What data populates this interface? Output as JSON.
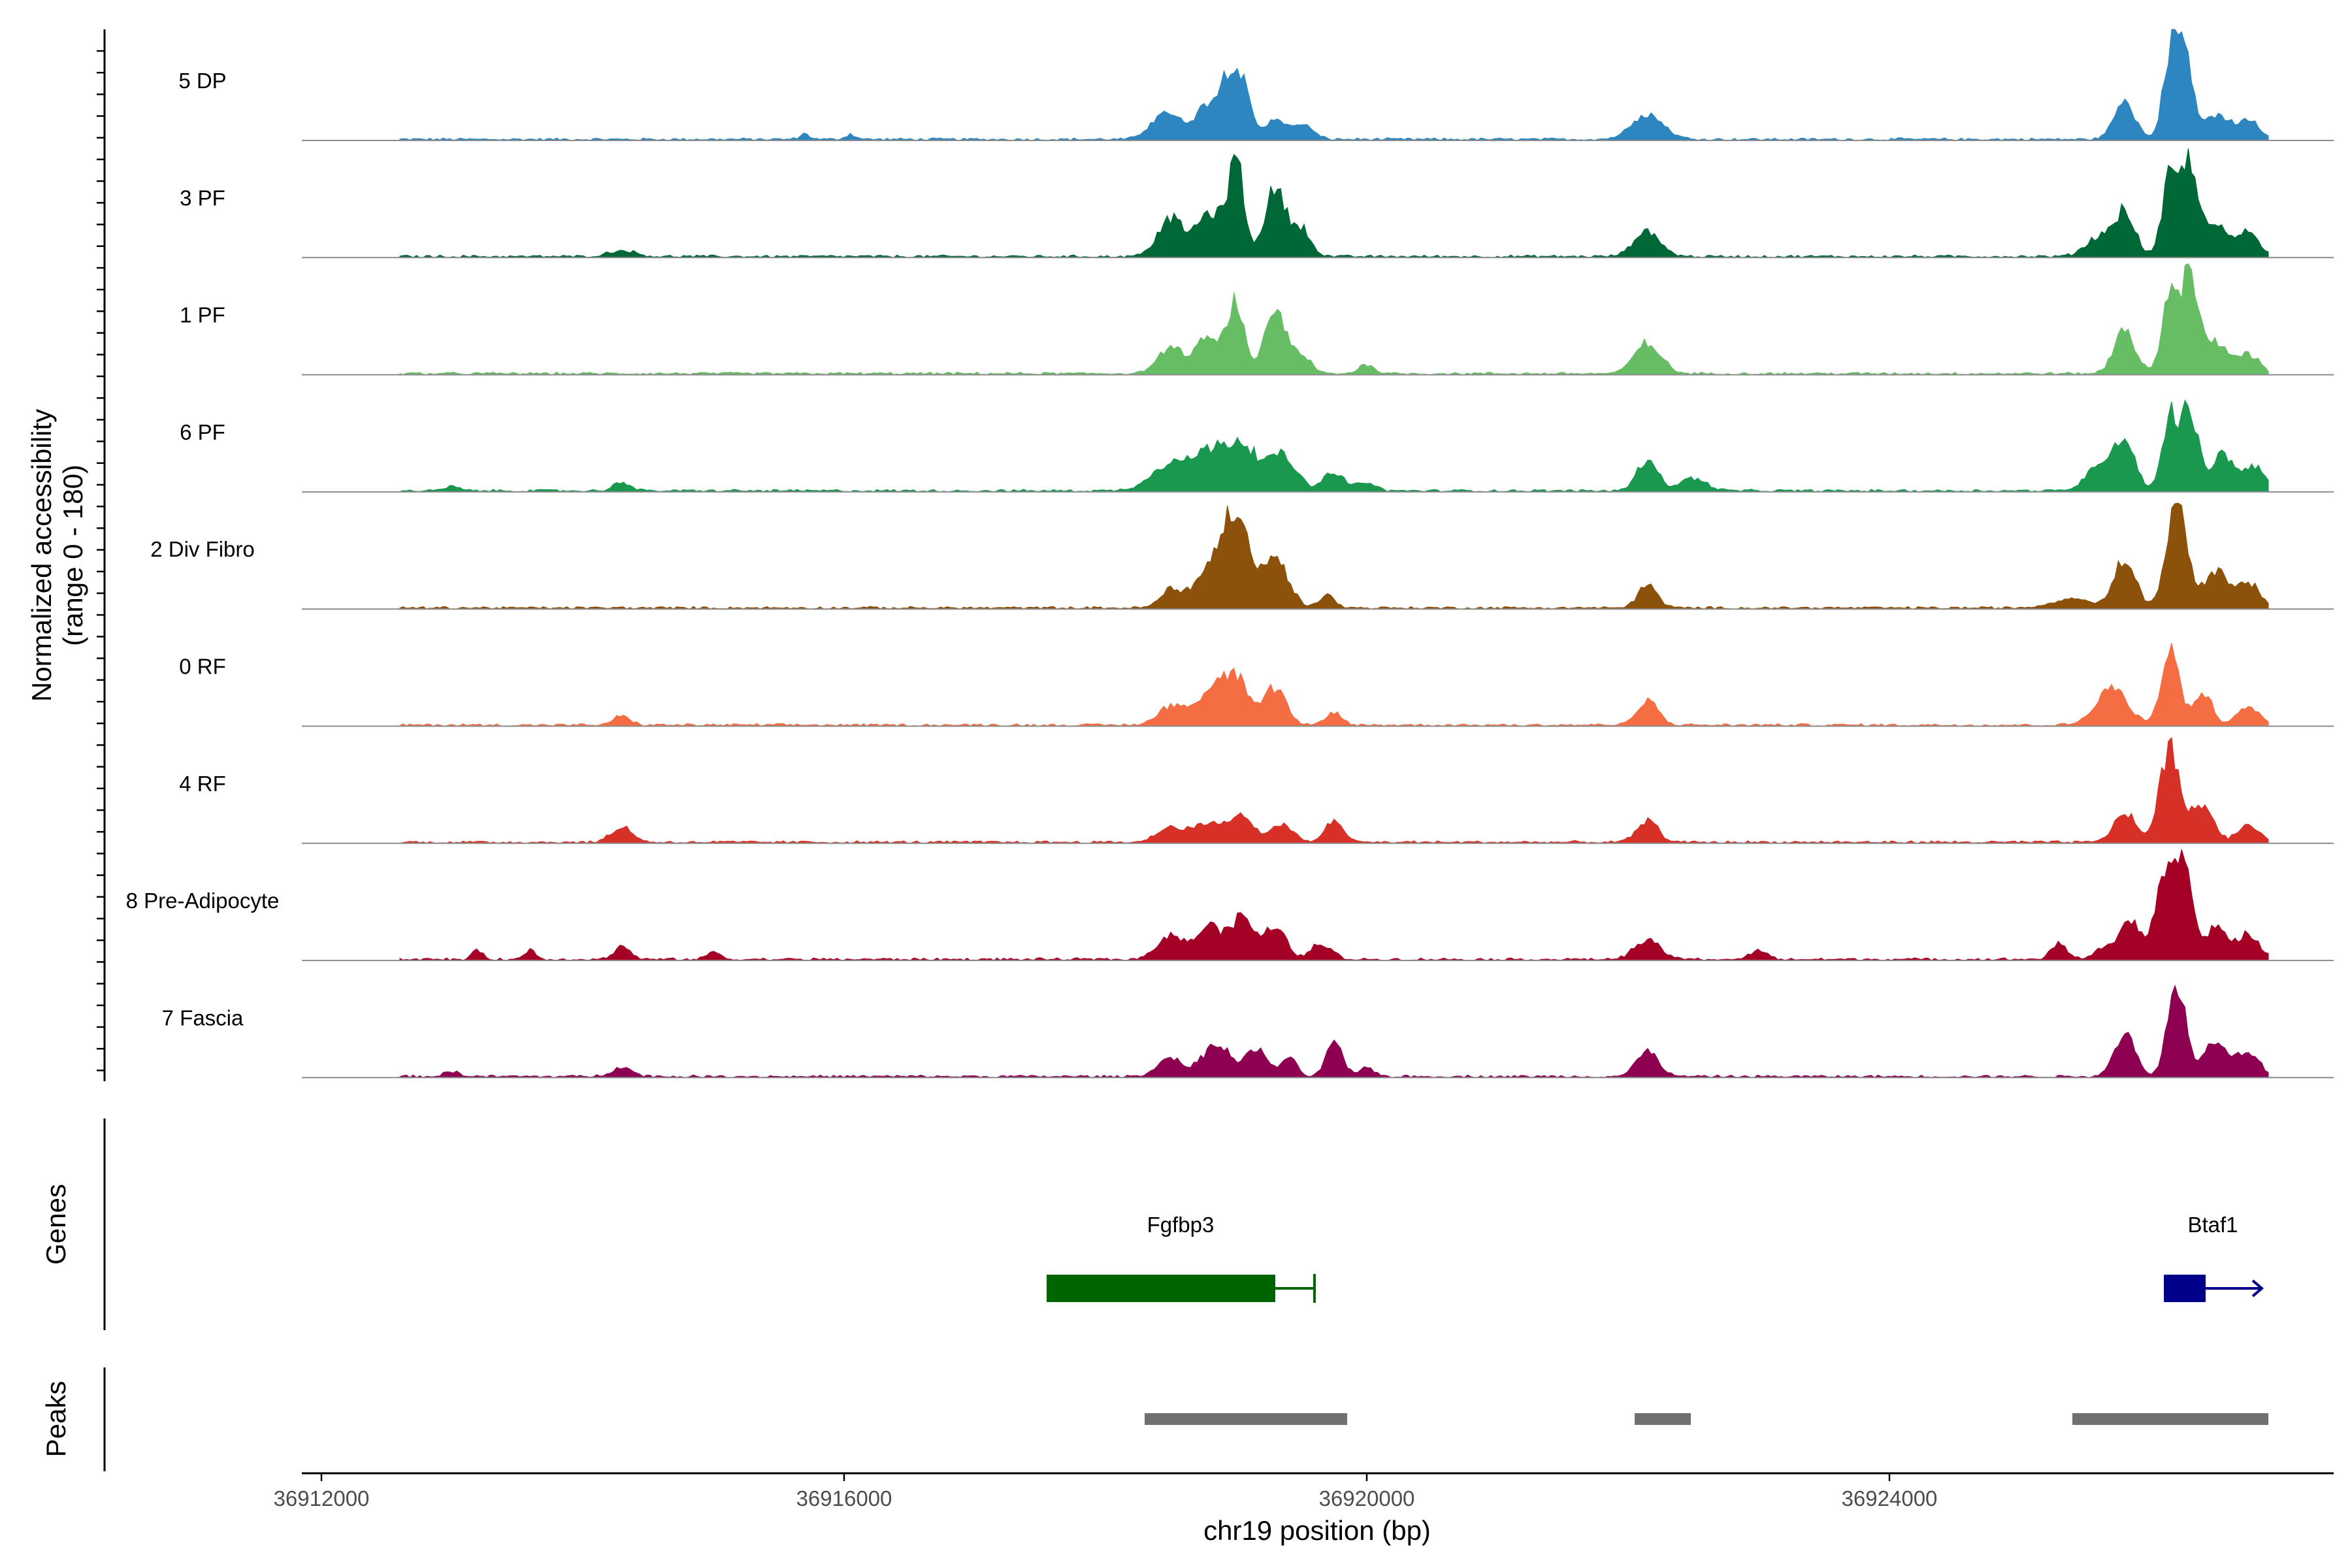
{
  "chart_data": {
    "type": "area",
    "title": "",
    "xlabel": "chr19 position (bp)",
    "ylabel": "Normalized accessibility",
    "ylabel_range": "(range 0 - 180)",
    "ylim": [
      0,
      180
    ],
    "xlim": [
      36911850,
      36927400
    ],
    "data_range": [
      36912600,
      36926900
    ],
    "x_ticks": [
      36912000,
      36916000,
      36920000,
      36924000
    ],
    "x_tick_labels": [
      "36912000",
      "36916000",
      "36920000",
      "36924000"
    ],
    "tracks": [
      {
        "name": "5 DP",
        "color": "#2e86c1",
        "peaks": [
          [
            36915700,
            40,
            8
          ],
          [
            36916050,
            40,
            8
          ],
          [
            36918450,
            100,
            45
          ],
          [
            36918800,
            120,
            55
          ],
          [
            36919000,
            90,
            110
          ],
          [
            36919300,
            60,
            35
          ],
          [
            36919500,
            80,
            25
          ],
          [
            36922150,
            120,
            40
          ],
          [
            36925800,
            80,
            60
          ],
          [
            36926150,
            60,
            120
          ],
          [
            36926250,
            60,
            150
          ],
          [
            36926500,
            100,
            40
          ],
          [
            36926750,
            80,
            30
          ]
        ]
      },
      {
        "name": "3 PF",
        "color": "#006837",
        "peaks": [
          [
            36914300,
            100,
            10
          ],
          [
            36918500,
            100,
            60
          ],
          [
            36918800,
            100,
            70
          ],
          [
            36919000,
            60,
            150
          ],
          [
            36919300,
            80,
            110
          ],
          [
            36919500,
            70,
            45
          ],
          [
            36922150,
            100,
            40
          ],
          [
            36925600,
            100,
            30
          ],
          [
            36925800,
            80,
            70
          ],
          [
            36926150,
            60,
            130
          ],
          [
            36926300,
            60,
            150
          ],
          [
            36926500,
            90,
            50
          ],
          [
            36926750,
            80,
            40
          ]
        ]
      },
      {
        "name": "1 PF",
        "color": "#66bd63",
        "peaks": [
          [
            36918500,
            100,
            40
          ],
          [
            36918800,
            100,
            60
          ],
          [
            36919000,
            60,
            110
          ],
          [
            36919300,
            80,
            100
          ],
          [
            36919500,
            70,
            30
          ],
          [
            36920000,
            60,
            15
          ],
          [
            36922150,
            100,
            50
          ],
          [
            36925800,
            80,
            70
          ],
          [
            36926150,
            60,
            130
          ],
          [
            36926300,
            60,
            160
          ],
          [
            36926500,
            100,
            50
          ],
          [
            36926750,
            80,
            30
          ]
        ]
      },
      {
        "name": "6 PF",
        "color": "#1a9850",
        "peaks": [
          [
            36913000,
            50,
            8
          ],
          [
            36914300,
            60,
            15
          ],
          [
            36918500,
            150,
            40
          ],
          [
            36918800,
            150,
            55
          ],
          [
            36919050,
            120,
            65
          ],
          [
            36919350,
            110,
            55
          ],
          [
            36919750,
            80,
            30
          ],
          [
            36920000,
            60,
            15
          ],
          [
            36922150,
            80,
            50
          ],
          [
            36922500,
            100,
            20
          ],
          [
            36925600,
            100,
            40
          ],
          [
            36925800,
            80,
            80
          ],
          [
            36926150,
            60,
            120
          ],
          [
            36926300,
            60,
            130
          ],
          [
            36926550,
            90,
            60
          ],
          [
            36926800,
            80,
            40
          ]
        ]
      },
      {
        "name": "2 Div Fibro",
        "color": "#8c510a",
        "peaks": [
          [
            36918500,
            80,
            30
          ],
          [
            36918800,
            120,
            60
          ],
          [
            36919000,
            100,
            140
          ],
          [
            36919300,
            100,
            80
          ],
          [
            36919700,
            60,
            20
          ],
          [
            36922150,
            70,
            40
          ],
          [
            36925400,
            150,
            15
          ],
          [
            36925800,
            80,
            80
          ],
          [
            36926200,
            80,
            170
          ],
          [
            36926500,
            90,
            60
          ],
          [
            36926750,
            80,
            40
          ]
        ]
      },
      {
        "name": "0 RF",
        "color": "#f46d43",
        "peaks": [
          [
            36914300,
            60,
            15
          ],
          [
            36918500,
            100,
            30
          ],
          [
            36918800,
            120,
            50
          ],
          [
            36919000,
            100,
            70
          ],
          [
            36919300,
            80,
            60
          ],
          [
            36919750,
            60,
            20
          ],
          [
            36922150,
            80,
            40
          ],
          [
            36925700,
            120,
            60
          ],
          [
            36926150,
            70,
            120
          ],
          [
            36926400,
            70,
            50
          ],
          [
            36926750,
            80,
            30
          ]
        ]
      },
      {
        "name": "4 RF",
        "color": "#d73027",
        "peaks": [
          [
            36914300,
            80,
            25
          ],
          [
            36918500,
            100,
            25
          ],
          [
            36918800,
            120,
            30
          ],
          [
            36919050,
            80,
            45
          ],
          [
            36919350,
            80,
            30
          ],
          [
            36919750,
            70,
            35
          ],
          [
            36922150,
            80,
            35
          ],
          [
            36925800,
            80,
            50
          ],
          [
            36926150,
            80,
            150
          ],
          [
            36926400,
            80,
            60
          ],
          [
            36926750,
            80,
            30
          ]
        ]
      },
      {
        "name": "8 Pre-Adipocyte",
        "color": "#a50026",
        "peaks": [
          [
            36913200,
            40,
            15
          ],
          [
            36913600,
            40,
            15
          ],
          [
            36914300,
            60,
            20
          ],
          [
            36915000,
            50,
            12
          ],
          [
            36918500,
            100,
            40
          ],
          [
            36918800,
            100,
            55
          ],
          [
            36919050,
            80,
            70
          ],
          [
            36919300,
            80,
            55
          ],
          [
            36919650,
            80,
            25
          ],
          [
            36922150,
            100,
            30
          ],
          [
            36923000,
            60,
            15
          ],
          [
            36925300,
            60,
            25
          ],
          [
            36925650,
            80,
            20
          ],
          [
            36925850,
            80,
            60
          ],
          [
            36926100,
            70,
            130
          ],
          [
            36926250,
            60,
            170
          ],
          [
            36926500,
            90,
            50
          ],
          [
            36926750,
            80,
            40
          ]
        ]
      },
      {
        "name": "7 Fascia",
        "color": "#8e0152",
        "peaks": [
          [
            36913000,
            60,
            8
          ],
          [
            36914300,
            80,
            15
          ],
          [
            36918500,
            100,
            30
          ],
          [
            36918850,
            100,
            55
          ],
          [
            36919150,
            80,
            45
          ],
          [
            36919400,
            60,
            30
          ],
          [
            36919750,
            60,
            60
          ],
          [
            36920000,
            60,
            15
          ],
          [
            36922150,
            80,
            45
          ],
          [
            36925800,
            80,
            70
          ],
          [
            36926200,
            70,
            150
          ],
          [
            36926500,
            90,
            60
          ],
          [
            36926750,
            80,
            40
          ]
        ]
      }
    ],
    "genes": [
      {
        "name": "Fgfbp3",
        "start": 36917550,
        "end": 36919600,
        "cds_start": 36917550,
        "cds_end": 36919300,
        "strand": "-",
        "color": "#006400"
      },
      {
        "name": "Btaf1",
        "start": 36926100,
        "end": 36926850,
        "cds_start": 36926100,
        "cds_end": 36926420,
        "strand": "+",
        "color": "#00008b"
      }
    ],
    "peak_regions": [
      [
        36918300,
        36919850
      ],
      [
        36922050,
        36922480
      ],
      [
        36925400,
        36926900
      ]
    ],
    "panel_titles": {
      "genes": "Genes",
      "peaks": "Peaks"
    },
    "peak_color": "#707070",
    "legend": "none",
    "grid": false
  }
}
